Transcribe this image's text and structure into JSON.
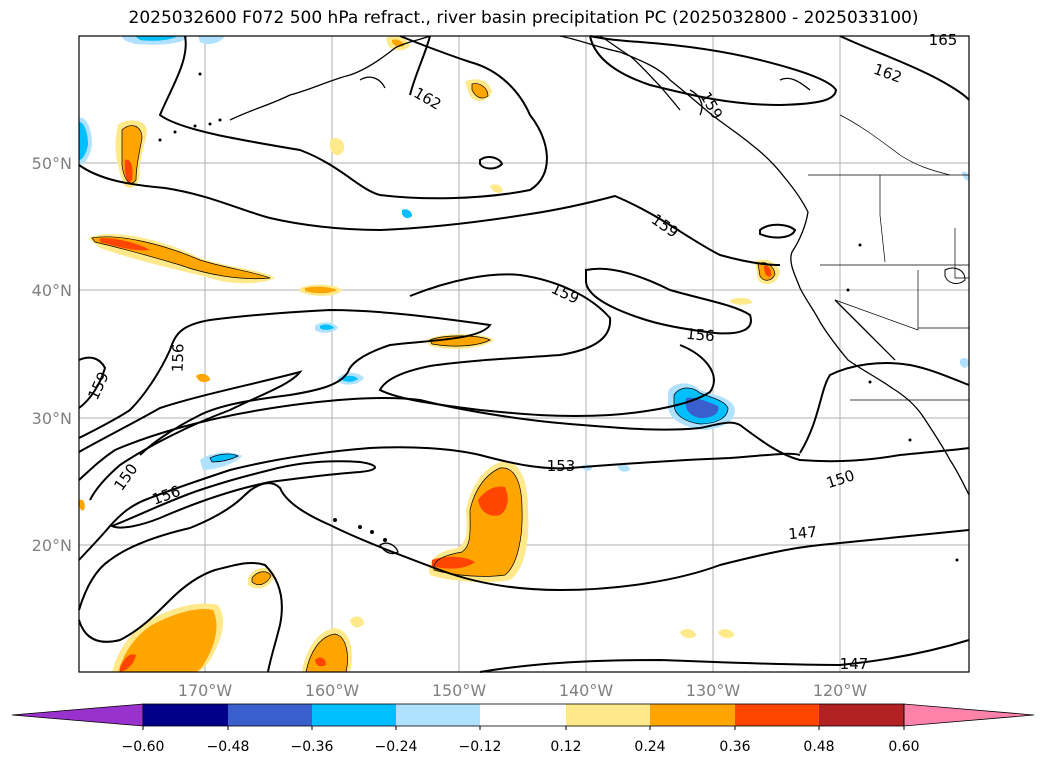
{
  "title": "2025032600 F072 500 hPa refract., river basin precipitation PC (2025032800 - 2025033100)",
  "map": {
    "lat_labels": [
      "50°N",
      "40°N",
      "30°N",
      "20°N"
    ],
    "lon_labels": [
      "170°W",
      "160°W",
      "150°W",
      "140°W",
      "130°W",
      "120°W"
    ],
    "contour_labels": [
      "165",
      "162",
      "162",
      "159",
      "159",
      "159",
      "156",
      "156",
      "156",
      "153",
      "150",
      "150",
      "147",
      "147",
      "159"
    ]
  },
  "colorbar": {
    "ticks": [
      "−0.60",
      "−0.48",
      "−0.36",
      "−0.24",
      "−0.12",
      "0.12",
      "0.24",
      "0.36",
      "0.48",
      "0.60"
    ],
    "colors": [
      "#9932cc",
      "#00008b",
      "#3a5fcd",
      "#00bfff",
      "#b0e2ff",
      "#ffffff",
      "#ffe98a",
      "#ffa500",
      "#ff4500",
      "#b22222",
      "#ff82ab"
    ]
  }
}
